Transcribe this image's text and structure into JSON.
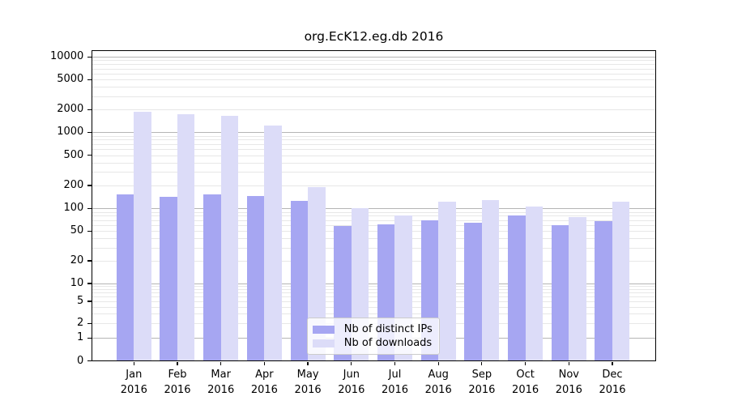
{
  "chart_data": {
    "type": "bar",
    "title": "org.EcK12.eg.db 2016",
    "categories": [
      "Jan",
      "Feb",
      "Mar",
      "Apr",
      "May",
      "Jun",
      "Jul",
      "Aug",
      "Sep",
      "Oct",
      "Nov",
      "Dec"
    ],
    "x_sublabel": "2016",
    "series": [
      {
        "name": "Nb of distinct IPs",
        "color": "#a6a6f2",
        "values": [
          152,
          143,
          152,
          146,
          126,
          59,
          61,
          70,
          65,
          81,
          60,
          68
        ]
      },
      {
        "name": "Nb of downloads",
        "color": "#dcdcf8",
        "values": [
          1870,
          1740,
          1670,
          1240,
          192,
          100,
          81,
          123,
          130,
          106,
          77,
          123
        ]
      }
    ],
    "yticks": [
      0,
      1,
      2,
      5,
      10,
      20,
      50,
      100,
      200,
      500,
      1000,
      2000,
      5000,
      10000
    ],
    "y_scale": "symlog",
    "ylim": [
      0,
      13000
    ],
    "grid": "horizontal",
    "legend_position": "inside-bottom-center"
  },
  "colors": {
    "major_grid": "#b5b5b5",
    "minor_grid": "#e7e7e7",
    "axis": "#000000",
    "legend_border": "#cccccc",
    "legend_bg": "rgba(255,255,255,0.8)"
  }
}
